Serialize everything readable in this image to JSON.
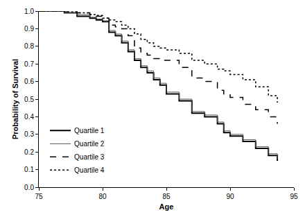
{
  "chart_data": {
    "type": "line",
    "x_label": "Age",
    "y_label": "Probability of Survival",
    "line_style": "step",
    "xlim": [
      75,
      95
    ],
    "xticks": [
      75,
      80,
      85,
      90,
      95
    ],
    "ylim": [
      0,
      1
    ],
    "yticks": [
      {
        "value": 0,
        "label": "0.0"
      },
      0.1,
      0.2,
      0.3,
      0.4,
      0.5,
      0.6,
      0.7,
      0.8,
      0.9,
      {
        "value": 1,
        "label": "1.0"
      }
    ],
    "grid": false,
    "legend": "lower left",
    "x": [
      75,
      77,
      78,
      79,
      79.5,
      80,
      80.5,
      81,
      81.5,
      82,
      82.5,
      83,
      83.5,
      84,
      84.5,
      85,
      86,
      87,
      88,
      89,
      89.5,
      90,
      91,
      92,
      93,
      93.7
    ],
    "series": [
      {
        "name": "Quartile 1",
        "color": "#000000",
        "line_style": "solid",
        "values": [
          1.0,
          0.99,
          0.97,
          0.96,
          0.95,
          0.94,
          0.88,
          0.86,
          0.82,
          0.77,
          0.72,
          0.68,
          0.65,
          0.61,
          0.58,
          0.53,
          0.49,
          0.42,
          0.4,
          0.36,
          0.31,
          0.29,
          0.26,
          0.22,
          0.18,
          0.15
        ]
      },
      {
        "name": "Quartile 2",
        "color": "#555555",
        "line_style": "solid",
        "values": [
          1.0,
          0.99,
          0.98,
          0.965,
          0.955,
          0.945,
          0.89,
          0.87,
          0.83,
          0.78,
          0.73,
          0.69,
          0.66,
          0.62,
          0.59,
          0.54,
          0.5,
          0.43,
          0.41,
          0.37,
          0.32,
          0.3,
          0.27,
          0.23,
          0.19,
          0.16
        ]
      },
      {
        "name": "Quartile 3",
        "color": "#000000",
        "line_style": "dash",
        "values": [
          1.0,
          0.995,
          0.99,
          0.98,
          0.97,
          0.96,
          0.92,
          0.91,
          0.9,
          0.86,
          0.79,
          0.76,
          0.75,
          0.73,
          0.72,
          0.72,
          0.68,
          0.62,
          0.6,
          0.55,
          0.53,
          0.51,
          0.47,
          0.44,
          0.4,
          0.36
        ]
      },
      {
        "name": "Quartile 4",
        "color": "#000000",
        "line_style": "dot",
        "values": [
          1.0,
          0.995,
          0.99,
          0.98,
          0.975,
          0.96,
          0.95,
          0.94,
          0.92,
          0.9,
          0.87,
          0.84,
          0.82,
          0.8,
          0.79,
          0.78,
          0.76,
          0.72,
          0.7,
          0.67,
          0.66,
          0.64,
          0.61,
          0.57,
          0.52,
          0.48
        ]
      }
    ]
  }
}
